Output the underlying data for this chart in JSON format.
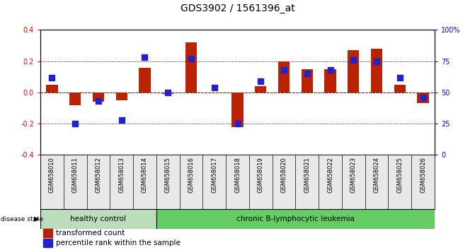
{
  "title": "GDS3902 / 1561396_at",
  "samples": [
    "GSM658010",
    "GSM658011",
    "GSM658012",
    "GSM658013",
    "GSM658014",
    "GSM658015",
    "GSM658016",
    "GSM658017",
    "GSM658018",
    "GSM658019",
    "GSM658020",
    "GSM658021",
    "GSM658022",
    "GSM658023",
    "GSM658024",
    "GSM658025",
    "GSM658026"
  ],
  "red_values": [
    0.05,
    -0.08,
    -0.06,
    -0.05,
    0.16,
    -0.01,
    0.32,
    0.0,
    -0.22,
    0.04,
    0.2,
    0.15,
    0.15,
    0.27,
    0.28,
    0.05,
    -0.07
  ],
  "blue_percentile": [
    62,
    25,
    43,
    28,
    78,
    50,
    77,
    54,
    25,
    59,
    68,
    65,
    68,
    76,
    75,
    62,
    46
  ],
  "healthy_count": 5,
  "total_count": 17,
  "bar_color": "#bb2200",
  "dot_color": "#2222cc",
  "healthy_color": "#bbddbb",
  "leukemia_color": "#66cc66",
  "healthy_label": "healthy control",
  "leukemia_label": "chronic B-lymphocytic leukemia",
  "ylim_left": [
    -0.4,
    0.4
  ],
  "ylim_right": [
    0,
    100
  ],
  "yticks_left": [
    -0.4,
    -0.2,
    0.0,
    0.2,
    0.4
  ],
  "yticks_right": [
    0,
    25,
    50,
    75,
    100
  ],
  "legend_red": "transformed count",
  "legend_blue": "percentile rank within the sample",
  "background_color": "#ffffff"
}
